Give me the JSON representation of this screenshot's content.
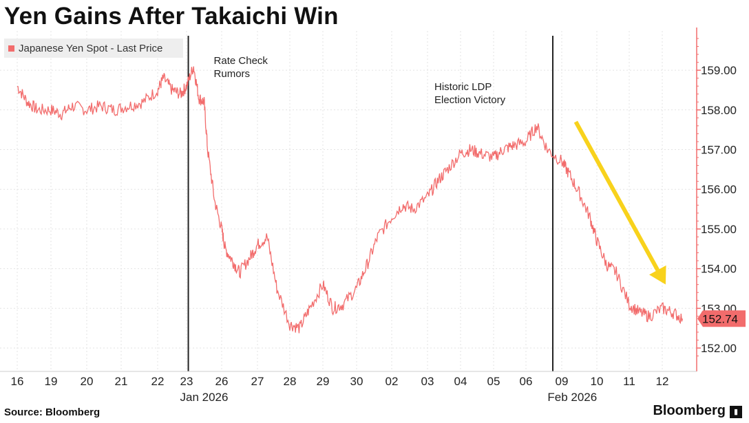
{
  "title": "Yen Gains After Takaichi Win",
  "colors": {
    "line": "#f26c6c",
    "last_price_box": "#f26c6c",
    "arrow": "#f8d21c",
    "axis": "#f26c6c",
    "event_line": "#222222"
  },
  "legend": {
    "label": "Japanese Yen Spot - Last Price"
  },
  "source": "Source: Bloomberg",
  "brand": "Bloomberg",
  "chart_data": {
    "type": "line",
    "title": "Yen Gains After Takaichi Win",
    "ylabel": "",
    "ylim": [
      151.6,
      160.0
    ],
    "y_ticks": [
      "152.00",
      "153.00",
      "154.00",
      "155.00",
      "156.00",
      "157.00",
      "158.00",
      "159.00"
    ],
    "x_tick_labels": [
      "16",
      "19",
      "20",
      "21",
      "22",
      "23",
      "26",
      "27",
      "28",
      "29",
      "30",
      "02",
      "03",
      "04",
      "05",
      "06",
      "09",
      "10",
      "11",
      "12"
    ],
    "x_month_labels": [
      {
        "label": "Jan 2026",
        "at_index": 5.5
      },
      {
        "label": "Feb 2026",
        "at_index": 16.3
      }
    ],
    "series": [
      {
        "name": "Japanese Yen Spot - Last Price",
        "x": [
          0,
          0.3,
          0.6,
          1.0,
          1.3,
          1.6,
          2.0,
          2.4,
          2.8,
          3.2,
          3.6,
          4.0,
          4.2,
          4.5,
          4.8,
          5.0,
          5.2,
          5.35,
          5.5,
          5.6,
          5.8,
          6.0,
          6.1,
          6.3,
          6.5,
          6.8,
          7.0,
          7.3,
          7.6,
          8.0,
          8.3,
          8.6,
          9.0,
          9.3,
          9.6,
          10.0,
          10.3,
          10.6,
          11.0,
          11.3,
          11.6,
          12.0,
          12.3,
          12.6,
          13.0,
          13.3,
          13.6,
          14.0,
          14.3,
          14.6,
          15.0,
          15.3,
          15.6,
          16.0,
          16.2,
          16.5,
          16.8,
          17.0,
          17.3,
          17.6,
          18.0,
          18.3,
          18.6,
          19.0,
          19.3,
          19.6
        ],
        "values": [
          158.6,
          158.2,
          158.0,
          158.0,
          157.9,
          158.1,
          158.0,
          158.1,
          158.0,
          158.1,
          158.2,
          158.5,
          158.8,
          158.5,
          158.4,
          158.6,
          159.1,
          158.3,
          158.2,
          157.0,
          155.7,
          155.0,
          154.5,
          154.2,
          153.9,
          154.3,
          154.6,
          154.8,
          153.5,
          152.6,
          152.5,
          153.0,
          153.6,
          153.0,
          153.1,
          153.5,
          154.1,
          154.8,
          155.3,
          155.6,
          155.5,
          155.8,
          156.2,
          156.5,
          156.9,
          157.0,
          156.9,
          156.8,
          157.0,
          157.1,
          157.2,
          157.6,
          157.0,
          156.7,
          156.4,
          155.9,
          155.3,
          154.7,
          154.1,
          153.9,
          153.1,
          152.9,
          152.8,
          153.0,
          152.9,
          152.74
        ]
      }
    ],
    "last_value": "152.74",
    "events": [
      {
        "label_line1": "Rate Check",
        "label_line2": "Rumors",
        "at_index": 5.05
      },
      {
        "label_line1": "Historic LDP",
        "label_line2": "Election Victory",
        "at_index": 15.75
      }
    ],
    "annotation_arrow": {
      "direction": "down-right",
      "from_index": 16.4,
      "from_value": 157.7,
      "to_index": 19.1,
      "to_value": 153.6
    }
  }
}
